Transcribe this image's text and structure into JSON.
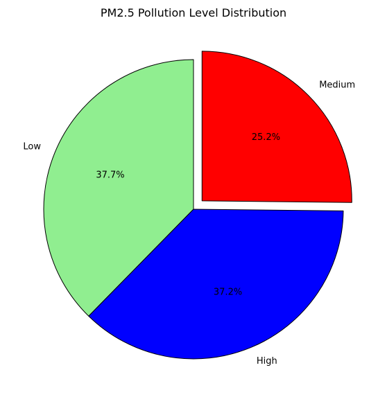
{
  "chart_data": {
    "type": "pie",
    "title": "PM2.5 Pollution Level Distribution",
    "start_angle_deg": 90,
    "direction": "counterclockwise",
    "edge_color": "#000000",
    "slices": [
      {
        "label": "Low",
        "value": 37.7,
        "pct_text": "37.7%",
        "color": "#90ee90",
        "exploded": false
      },
      {
        "label": "High",
        "value": 37.2,
        "pct_text": "37.2%",
        "color": "#0000ff",
        "exploded": false
      },
      {
        "label": "Medium",
        "value": 25.2,
        "pct_text": "25.2%",
        "color": "#ff0000",
        "exploded": true
      }
    ]
  }
}
